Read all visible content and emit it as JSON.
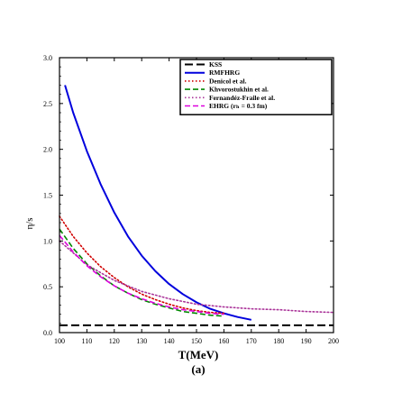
{
  "chart_data": {
    "type": "line",
    "xlabel": "T(MeV)",
    "ylabel": "η/s",
    "panel_label": "(a)",
    "xlim": [
      100,
      200
    ],
    "ylim": [
      0.0,
      3.0
    ],
    "xticks": [
      "100",
      "110",
      "120",
      "130",
      "140",
      "150",
      "160",
      "170",
      "180",
      "190",
      "200"
    ],
    "yticks": [
      "0.0",
      "0.5",
      "1.0",
      "1.5",
      "2.0",
      "2.5",
      "3.0"
    ],
    "legend_position": "top-right",
    "series": [
      {
        "name": "KSS",
        "color": "#000000",
        "style": "dashed-thick",
        "x": [
          100,
          200
        ],
        "y": [
          0.08,
          0.08
        ]
      },
      {
        "name": "RMFHRG",
        "color": "#0000dd",
        "style": "solid",
        "x": [
          102,
          105,
          110,
          115,
          120,
          125,
          130,
          135,
          140,
          145,
          150,
          155,
          160,
          165,
          170
        ],
        "y": [
          2.7,
          2.4,
          1.98,
          1.62,
          1.31,
          1.05,
          0.84,
          0.67,
          0.53,
          0.42,
          0.33,
          0.26,
          0.21,
          0.17,
          0.14
        ]
      },
      {
        "name": "Denicol et al.",
        "color": "#d00000",
        "style": "dotted",
        "x": [
          100,
          105,
          110,
          115,
          120,
          125,
          130,
          135,
          140,
          145,
          150,
          155,
          160
        ],
        "y": [
          1.27,
          1.05,
          0.87,
          0.72,
          0.6,
          0.5,
          0.42,
          0.36,
          0.31,
          0.27,
          0.24,
          0.22,
          0.21
        ]
      },
      {
        "name": "Khvorostukhin et al.",
        "color": "#008800",
        "style": "dashed",
        "x": [
          100,
          105,
          110,
          115,
          120,
          125,
          130,
          135,
          140,
          145,
          150,
          155,
          160
        ],
        "y": [
          1.13,
          0.92,
          0.75,
          0.62,
          0.51,
          0.43,
          0.36,
          0.31,
          0.27,
          0.23,
          0.21,
          0.19,
          0.18
        ]
      },
      {
        "name": "Fernandéz-Fraile et al.",
        "color": "#aa3399",
        "style": "dotted",
        "x": [
          100,
          110,
          120,
          130,
          140,
          150,
          160,
          170,
          180,
          190,
          200
        ],
        "y": [
          1.0,
          0.74,
          0.57,
          0.45,
          0.37,
          0.31,
          0.28,
          0.26,
          0.25,
          0.23,
          0.22
        ]
      },
      {
        "name": "EHRG (r_h = 0.3 fm)",
        "color": "#dd00dd",
        "style": "dashed",
        "x": [
          100,
          105,
          110,
          115,
          120,
          125,
          130,
          135,
          140,
          145,
          150,
          155,
          160
        ],
        "y": [
          1.06,
          0.88,
          0.73,
          0.61,
          0.51,
          0.43,
          0.37,
          0.32,
          0.28,
          0.25,
          0.23,
          0.21,
          0.2
        ]
      }
    ]
  },
  "legend": {
    "entries": [
      {
        "label": "KSS",
        "color": "#000000",
        "style": "dashed-thick",
        "bold": true
      },
      {
        "label": "RMFHRG",
        "color": "#0000dd",
        "style": "solid",
        "bold": true
      },
      {
        "label": "Denicol et al.",
        "color": "#d00000",
        "style": "dotted",
        "bold": true
      },
      {
        "label": "Khvorostukhin et al.",
        "color": "#008800",
        "style": "dashed",
        "bold": true
      },
      {
        "label": "Fernandéz-Fraile et al.",
        "color": "#aa3399",
        "style": "dotted",
        "bold": true
      },
      {
        "label": "EHRG (rₕ = 0.3 fm)",
        "color": "#dd00dd",
        "style": "dashed",
        "bold": true
      }
    ]
  }
}
